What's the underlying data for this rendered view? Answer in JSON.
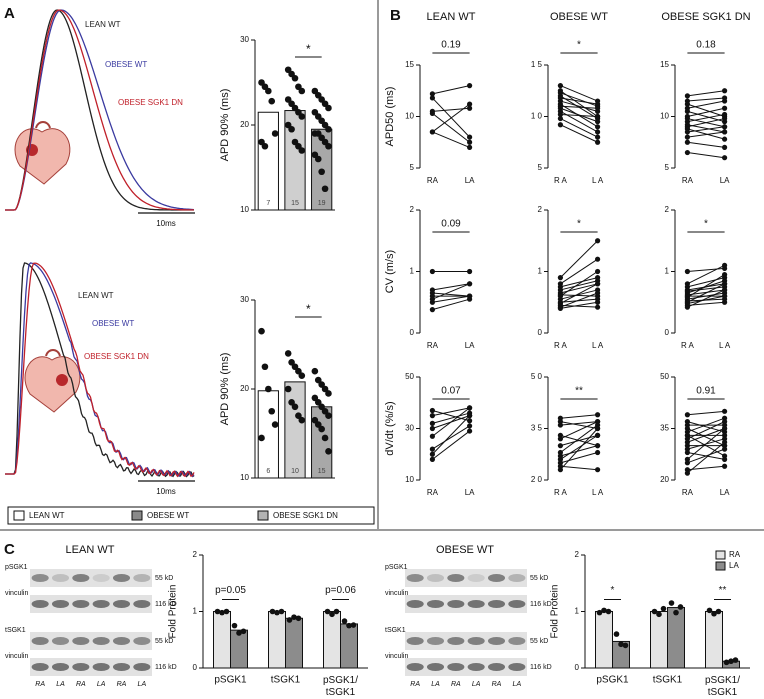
{
  "panel_labels": [
    "A",
    "B",
    "C"
  ],
  "panel_a_traces": [
    {
      "labels": [
        {
          "text": "LEAN WT",
          "color": "#222222"
        },
        {
          "text": "OBESE WT",
          "color": "#3a3aa0"
        },
        {
          "text": "OBESE SGK1 DN",
          "color": "#c0202a"
        }
      ],
      "scale_bar": "10ms"
    },
    {
      "labels": [
        {
          "text": "LEAN WT",
          "color": "#222222"
        },
        {
          "text": "OBESE WT",
          "color": "#3a3aa0"
        },
        {
          "text": "OBESE SGK1 DN",
          "color": "#c0202a"
        }
      ],
      "scale_bar": "10ms"
    }
  ],
  "panel_a_legend": [
    {
      "name": "LEAN WT",
      "color": "#ffffff"
    },
    {
      "name": "OBESE WT",
      "color": "#8a8a8a"
    },
    {
      "name": "OBESE SGK1 DN",
      "color": "#b3b3b3"
    }
  ],
  "blots": [
    {
      "title": "LEAN WT",
      "rows": [
        "pSGK1",
        "vinculin",
        "tSGK1",
        "vinculin"
      ],
      "sizes": [
        "55 kD",
        "116 kD",
        "55 kD",
        "116 kD"
      ],
      "lanes": [
        "RA",
        "LA",
        "RA",
        "LA",
        "RA",
        "LA"
      ]
    },
    {
      "title": "OBESE WT",
      "rows": [
        "pSGK1",
        "vinculin",
        "tSGK1",
        "vinculin"
      ],
      "sizes": [
        "55 kD",
        "116 kD",
        "55 kD",
        "116 kD"
      ],
      "lanes": [
        "RA",
        "LA",
        "RA",
        "LA",
        "RA",
        "LA"
      ]
    }
  ],
  "chart_data": [
    {
      "type": "bar",
      "ylabel": "APD 90% (ms)",
      "categories": [
        null,
        null,
        null
      ],
      "values": [
        21.5,
        21.7,
        19.5
      ],
      "colors": [
        "#ffffff",
        "#cfcfcf",
        "#a8a8a8"
      ],
      "n": [
        7,
        15,
        19
      ],
      "points": [
        [
          25,
          24.5,
          24,
          22.8,
          19,
          18,
          17.5
        ],
        [
          26.5,
          26,
          25.5,
          24.5,
          24,
          23,
          22.5,
          22,
          21.5,
          21,
          20,
          19.5,
          18,
          17.5,
          17
        ],
        [
          24,
          23.5,
          23,
          22.5,
          22,
          21.5,
          21,
          20.5,
          20,
          19.5,
          19,
          19,
          18.5,
          18,
          17.5,
          16.5,
          16,
          14.5,
          12.5
        ]
      ],
      "significance": "*",
      "ylim": [
        10,
        30
      ],
      "yticks": [
        10,
        20,
        30
      ]
    },
    {
      "type": "bar",
      "ylabel": "APD 90% (ms)",
      "categories": [
        null,
        null,
        null
      ],
      "values": [
        19.8,
        20.8,
        18
      ],
      "colors": [
        "#ffffff",
        "#cfcfcf",
        "#a8a8a8"
      ],
      "n": [
        6,
        10,
        15
      ],
      "points": [
        [
          26.5,
          22.5,
          20,
          17.5,
          16,
          14.5
        ],
        [
          24,
          23,
          22.5,
          22,
          21.5,
          20,
          18.5,
          18,
          17,
          16.5
        ],
        [
          22,
          21,
          20.5,
          20,
          19.5,
          19,
          18.5,
          18,
          17.5,
          17,
          16.5,
          16,
          15.5,
          14.5,
          13
        ]
      ],
      "significance": "*",
      "ylim": [
        10,
        30
      ],
      "yticks": [
        10,
        20,
        30
      ]
    },
    {
      "type": "paired",
      "title": "LEAN WT",
      "ylabel": "APD50 (ms)",
      "categories": [
        "RA",
        "LA"
      ],
      "p_label": "0.19",
      "ylim": [
        5,
        15
      ],
      "yticks": [
        5,
        10,
        15
      ],
      "pairs": [
        [
          12.2,
          13
        ],
        [
          11.8,
          8
        ],
        [
          10.5,
          10.8
        ],
        [
          10.3,
          7.5
        ],
        [
          8.5,
          11.2
        ],
        [
          8.5,
          7
        ]
      ]
    },
    {
      "type": "paired",
      "title": "OBESE WT",
      "categories": [
        "R A",
        "L A"
      ],
      "p_label": "*",
      "ylim": [
        5,
        15
      ],
      "yticks": [
        5,
        {
          "value": 10,
          "label": "1 0"
        },
        {
          "value": 15,
          "label": "1 5"
        }
      ],
      "pairs": [
        [
          13,
          11.5
        ],
        [
          12.5,
          10
        ],
        [
          12.3,
          11
        ],
        [
          12,
          9.8
        ],
        [
          11.8,
          11.2
        ],
        [
          11.5,
          10.5
        ],
        [
          11.2,
          9
        ],
        [
          11,
          10.8
        ],
        [
          10.8,
          9.5
        ],
        [
          10.5,
          8.5
        ],
        [
          10.2,
          10
        ],
        [
          9.8,
          8
        ],
        [
          9.2,
          7.5
        ]
      ]
    },
    {
      "type": "paired",
      "title": "OBESE SGK1 DN",
      "categories": [
        "RA",
        "LA"
      ],
      "p_label": "0.18",
      "ylim": [
        5,
        15
      ],
      "yticks": [
        5,
        10,
        15
      ],
      "pairs": [
        [
          12,
          12.5
        ],
        [
          11.5,
          11.8
        ],
        [
          11.2,
          10
        ],
        [
          10.8,
          11.5
        ],
        [
          10.5,
          9.5
        ],
        [
          10,
          10.8
        ],
        [
          9.8,
          9
        ],
        [
          9.5,
          10.2
        ],
        [
          9.2,
          8.5
        ],
        [
          9,
          9.8
        ],
        [
          8.8,
          7.8
        ],
        [
          8.5,
          9
        ],
        [
          8,
          8.5
        ],
        [
          7.5,
          7
        ],
        [
          6.5,
          6
        ]
      ]
    },
    {
      "type": "paired",
      "ylabel": "CV (m/s)",
      "categories": [
        "RA",
        "LA"
      ],
      "p_label": "0.09",
      "ylim": [
        0,
        2
      ],
      "yticks": [
        0,
        1,
        2
      ],
      "pairs": [
        [
          1,
          1
        ],
        [
          0.7,
          0.8
        ],
        [
          0.65,
          0.6
        ],
        [
          0.6,
          0.6
        ],
        [
          0.55,
          0.8
        ],
        [
          0.5,
          0.6
        ],
        [
          0.38,
          0.55
        ]
      ]
    },
    {
      "type": "paired",
      "categories": [
        "R A",
        "L A"
      ],
      "p_label": "*",
      "ylim": [
        0,
        2
      ],
      "yticks": [
        0,
        1,
        2
      ],
      "pairs": [
        [
          0.9,
          1.5
        ],
        [
          0.8,
          1.2
        ],
        [
          0.75,
          0.9
        ],
        [
          0.7,
          0.85
        ],
        [
          0.65,
          0.8
        ],
        [
          0.62,
          0.6
        ],
        [
          0.6,
          1
        ],
        [
          0.55,
          0.7
        ],
        [
          0.5,
          0.55
        ],
        [
          0.48,
          0.8
        ],
        [
          0.45,
          0.42
        ],
        [
          0.42,
          0.65
        ],
        [
          0.4,
          0.5
        ]
      ]
    },
    {
      "type": "paired",
      "categories": [
        "R A",
        "L A"
      ],
      "p_label": "*",
      "ylim": [
        0,
        2
      ],
      "yticks": [
        0,
        1,
        2
      ],
      "pairs": [
        [
          1,
          1.05
        ],
        [
          0.8,
          1.1
        ],
        [
          0.75,
          0.9
        ],
        [
          0.7,
          0.8
        ],
        [
          0.68,
          0.75
        ],
        [
          0.65,
          0.85
        ],
        [
          0.62,
          0.7
        ],
        [
          0.6,
          0.6
        ],
        [
          0.58,
          0.95
        ],
        [
          0.55,
          0.65
        ],
        [
          0.52,
          0.55
        ],
        [
          0.5,
          0.8
        ],
        [
          0.48,
          0.6
        ],
        [
          0.45,
          0.5
        ],
        [
          0.42,
          0.7
        ]
      ]
    },
    {
      "type": "paired",
      "ylabel": "dV/dt (%/s)",
      "categories": [
        "RA",
        "LA"
      ],
      "p_label": "0.07",
      "ylim": [
        10,
        50
      ],
      "yticks": [
        10,
        30,
        50
      ],
      "pairs": [
        [
          37,
          33
        ],
        [
          35,
          38
        ],
        [
          32,
          36
        ],
        [
          30,
          35
        ],
        [
          27,
          38
        ],
        [
          22,
          31
        ],
        [
          20,
          35
        ],
        [
          18,
          29
        ]
      ]
    },
    {
      "type": "paired",
      "categories": [
        "R A",
        "L A"
      ],
      "p_label": "**",
      "ylim": [
        20,
        50
      ],
      "yticks": [
        {
          "value": 20,
          "label": "2 0"
        },
        {
          "value": 35,
          "label": "3 5"
        },
        {
          "value": 50,
          "label": "5 0"
        }
      ],
      "pairs": [
        [
          38,
          39
        ],
        [
          37,
          35
        ],
        [
          36,
          37
        ],
        [
          33,
          30
        ],
        [
          32,
          37
        ],
        [
          30,
          33
        ],
        [
          28,
          36
        ],
        [
          27,
          30
        ],
        [
          26,
          33
        ],
        [
          25,
          28
        ],
        [
          24,
          23
        ],
        [
          23,
          35
        ]
      ]
    },
    {
      "type": "paired",
      "categories": [
        "RA",
        "LA"
      ],
      "p_label": "0.91",
      "ylim": [
        20,
        50
      ],
      "yticks": [
        20,
        35,
        50
      ],
      "pairs": [
        [
          39,
          40
        ],
        [
          37,
          34
        ],
        [
          36,
          36
        ],
        [
          35,
          30
        ],
        [
          34,
          38
        ],
        [
          33,
          33
        ],
        [
          33,
          27
        ],
        [
          32,
          37
        ],
        [
          31,
          35
        ],
        [
          30,
          30
        ],
        [
          29,
          32
        ],
        [
          28,
          26
        ],
        [
          26,
          35
        ],
        [
          25,
          29
        ],
        [
          23,
          24
        ],
        [
          22,
          31
        ]
      ]
    },
    {
      "type": "grouped_bar",
      "ylabel": "Fold Protein",
      "categories": [
        "pSGK1",
        "tSGK1",
        "pSGK1/ tSGK1"
      ],
      "annotations": [
        "p=0.05",
        null,
        "p=0.06"
      ],
      "legend": false,
      "ylim": [
        0,
        2
      ],
      "yticks": [
        0,
        1,
        2
      ],
      "series": [
        {
          "name": "RA",
          "color": "#e4e4e4",
          "values": [
            1,
            1,
            1
          ],
          "points": [
            [
              1,
              0.98,
              1
            ],
            [
              1,
              0.98,
              1
            ],
            [
              1,
              0.95,
              1
            ]
          ]
        },
        {
          "name": "LA",
          "color": "#8c8c8c",
          "values": [
            0.67,
            0.88,
            0.78
          ],
          "points": [
            [
              0.75,
              0.62,
              0.65
            ],
            [
              0.85,
              0.9,
              0.88
            ],
            [
              0.83,
              0.75,
              0.76
            ]
          ]
        }
      ]
    },
    {
      "type": "grouped_bar",
      "ylabel": "Fold Protein",
      "categories": [
        "pSGK1",
        "tSGK1",
        "pSGK1/ tSGK1"
      ],
      "annotations": [
        "*",
        null,
        "**"
      ],
      "legend": "upper right",
      "ylim": [
        0,
        2
      ],
      "yticks": [
        0,
        1,
        2
      ],
      "series": [
        {
          "name": "RA",
          "color": "#e4e4e4",
          "values": [
            1,
            1,
            1
          ],
          "points": [
            [
              0.98,
              1.02,
              1
            ],
            [
              1,
              0.95,
              1.05
            ],
            [
              1.02,
              0.96,
              1
            ]
          ]
        },
        {
          "name": "LA",
          "color": "#8c8c8c",
          "values": [
            0.47,
            1.07,
            0.12
          ],
          "points": [
            [
              0.6,
              0.42,
              0.4
            ],
            [
              1.15,
              0.98,
              1.08
            ],
            [
              0.1,
              0.12,
              0.14
            ]
          ]
        }
      ]
    }
  ]
}
